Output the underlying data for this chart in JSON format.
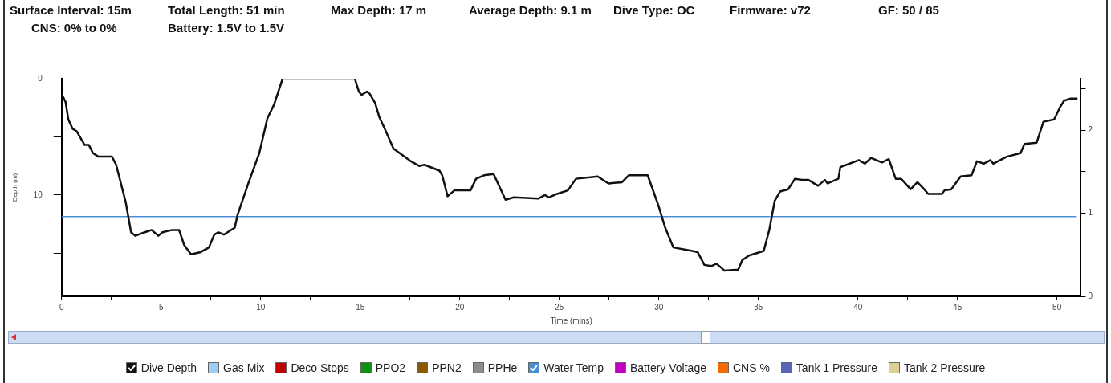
{
  "chart_data": {
    "type": "line",
    "xlabel": "Time (mins)",
    "ylabel": "Depth (m)",
    "annotations": [
      "Surface Interval: 15m",
      "Total Length: 51 min",
      "Max Depth: 17 m",
      "Average Depth: 9.1 m",
      "Dive Type: OC",
      "Firmware: v72",
      "GF: 50 / 85",
      "CNS: 0% to 0%",
      "Battery: 1.5V to 1.5V"
    ],
    "xlim": [
      0,
      51.2
    ],
    "xticks": [
      0,
      {
        "value": 2.5,
        "label": null
      },
      5,
      {
        "value": 7.5,
        "label": null
      },
      10,
      {
        "value": 12.5,
        "label": null
      },
      15,
      {
        "value": 17.5,
        "label": null
      },
      20,
      {
        "value": 22.5,
        "label": null
      },
      25,
      {
        "value": 27.5,
        "label": null
      },
      30,
      {
        "value": 32.5,
        "label": null
      },
      35,
      {
        "value": 37.5,
        "label": null
      },
      40,
      {
        "value": 42.5,
        "label": null
      },
      45,
      {
        "value": 47.5,
        "label": null
      },
      50
    ],
    "ylim": [
      18.7,
      0
    ],
    "yticks": [
      0,
      {
        "value": 5,
        "label": null
      },
      10,
      {
        "value": 15,
        "label": null
      }
    ],
    "y2lim": [
      0,
      2.62
    ],
    "y2ticks": [
      0,
      {
        "value": 0.5,
        "label": null
      },
      1,
      {
        "value": 1.5,
        "label": null
      },
      2,
      {
        "value": 2.5,
        "label": null
      }
    ],
    "grid": false,
    "legend": "bottom",
    "marker": "none",
    "line_style": "solid",
    "series": [
      {
        "name": "Dive Depth",
        "color": "#111111",
        "x": [
          0,
          0.2,
          0.34,
          0.55,
          0.75,
          1.16,
          1.37,
          1.58,
          1.85,
          2.53,
          2.74,
          3.22,
          3.49,
          3.7,
          4.18,
          4.52,
          4.86,
          5.07,
          5.55,
          5.9,
          6.16,
          6.5,
          6.99,
          7.4,
          7.67,
          7.88,
          8.15,
          8.7,
          8.84,
          9.38,
          9.93,
          10.34,
          10.68,
          11.1,
          14.73,
          14.93,
          15.07,
          15.34,
          15.48,
          15.75,
          15.96,
          16.23,
          16.67,
          17.15,
          17.55,
          17.96,
          18.23,
          18.98,
          19.12,
          19.39,
          19.73,
          20.54,
          20.82,
          21.22,
          21.7,
          22.3,
          22.72,
          23.94,
          24.28,
          24.48,
          24.89,
          25.43,
          25.84,
          26.93,
          27.47,
          28.15,
          28.49,
          29.44,
          29.98,
          30.32,
          30.73,
          31.68,
          31.95,
          32.29,
          32.63,
          32.9,
          33.31,
          33.99,
          34.19,
          34.53,
          35.27,
          35.55,
          35.82,
          36.09,
          36.5,
          36.84,
          37.18,
          37.52,
          38.0,
          38.34,
          38.48,
          39.02,
          39.12,
          39.43,
          40.05,
          40.35,
          40.66,
          41.21,
          41.55,
          41.9,
          42.17,
          42.65,
          42.99,
          43.33,
          43.53,
          44.22,
          44.35,
          44.69,
          45.16,
          45.71,
          45.98,
          46.32,
          46.66,
          46.8,
          47.48,
          48.17,
          48.37,
          48.98,
          49.32,
          49.86,
          50.14,
          50.35,
          50.69,
          51.03
        ],
        "values": [
          1.3,
          2.0,
          3.5,
          4.3,
          4.5,
          5.7,
          5.7,
          6.4,
          6.7,
          6.7,
          7.4,
          10.6,
          13.2,
          13.5,
          13.2,
          13.0,
          13.5,
          13.2,
          13.0,
          13.0,
          14.3,
          15.1,
          14.9,
          14.5,
          13.4,
          13.2,
          13.4,
          12.8,
          11.7,
          9.0,
          6.4,
          3.4,
          2.2,
          0,
          0,
          1.1,
          1.4,
          1.1,
          1.3,
          2.1,
          3.3,
          4.3,
          6.0,
          6.6,
          7.1,
          7.5,
          7.4,
          7.9,
          8.3,
          10.1,
          9.6,
          9.6,
          8.6,
          8.3,
          8.2,
          10.4,
          10.2,
          10.3,
          10.0,
          10.2,
          9.9,
          9.6,
          8.6,
          8.4,
          9.0,
          8.9,
          8.3,
          8.3,
          10.9,
          12.8,
          14.5,
          14.8,
          14.9,
          16.0,
          16.1,
          15.9,
          16.5,
          16.4,
          15.6,
          15.2,
          14.8,
          13.0,
          10.5,
          9.7,
          9.5,
          8.6,
          8.7,
          8.7,
          9.2,
          8.7,
          9.0,
          8.6,
          7.6,
          7.4,
          7.0,
          7.3,
          6.8,
          7.2,
          6.9,
          8.6,
          8.6,
          9.5,
          8.9,
          9.5,
          9.9,
          9.9,
          9.6,
          9.5,
          8.4,
          8.3,
          7.1,
          7.3,
          7.0,
          7.3,
          6.7,
          6.4,
          5.6,
          5.5,
          3.7,
          3.5,
          2.5,
          1.9,
          1.7,
          1.7
        ]
      },
      {
        "name": "Gas Mix",
        "color": "#9dcdf2"
      },
      {
        "name": "Deco Stops",
        "color": "#c00000"
      },
      {
        "name": "PPO2",
        "color": "#109010"
      },
      {
        "name": "PPN2",
        "color": "#8b5a00"
      },
      {
        "name": "PPHe",
        "color": "#8c8c8c"
      },
      {
        "name": "Water Temp",
        "color": "#4a8fd6",
        "axis": "y2",
        "x": [
          0,
          51
        ],
        "values": [
          0.96,
          0.96
        ]
      },
      {
        "name": "Battery Voltage",
        "color": "#c000c0"
      },
      {
        "name": "CNS %",
        "color": "#f26a00"
      },
      {
        "name": "Tank 1 Pressure",
        "color": "#5566bb"
      },
      {
        "name": "Tank 2 Pressure",
        "color": "#dccf98"
      }
    ]
  }
}
